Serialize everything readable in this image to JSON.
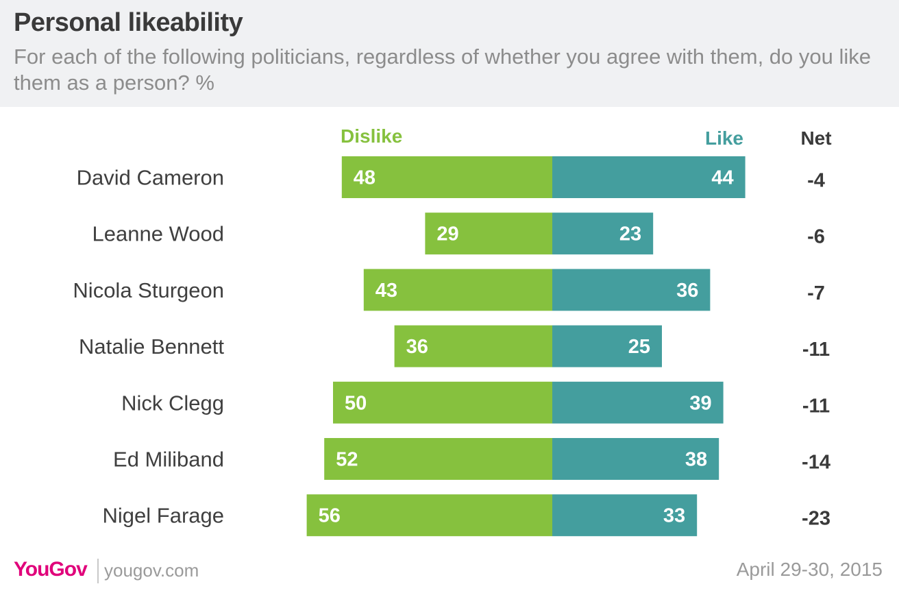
{
  "header": {
    "title": "Personal likeability",
    "subtitle": "For each of the following politicians, regardless of whether you agree with them, do you like them as a person? %"
  },
  "chart_data": {
    "type": "bar",
    "orientation": "horizontal-diverging",
    "categories": [
      "David Cameron",
      "Leanne Wood",
      "Nicola Sturgeon",
      "Natalie Bennett",
      "Nick Clegg",
      "Ed Miliband",
      "Nigel Farage"
    ],
    "series": [
      {
        "name": "Dislike",
        "color": "#86c13e",
        "values": [
          48,
          29,
          43,
          36,
          50,
          52,
          56
        ]
      },
      {
        "name": "Like",
        "color": "#449e9e",
        "values": [
          44,
          23,
          36,
          25,
          39,
          38,
          33
        ]
      }
    ],
    "net_header": "Net",
    "net": [
      "-4",
      "-6",
      "-7",
      "-11",
      "-11",
      "-14",
      "-23"
    ]
  },
  "footer": {
    "logo": "YouGov",
    "site": "yougov.com",
    "date": "April 29-30, 2015"
  }
}
